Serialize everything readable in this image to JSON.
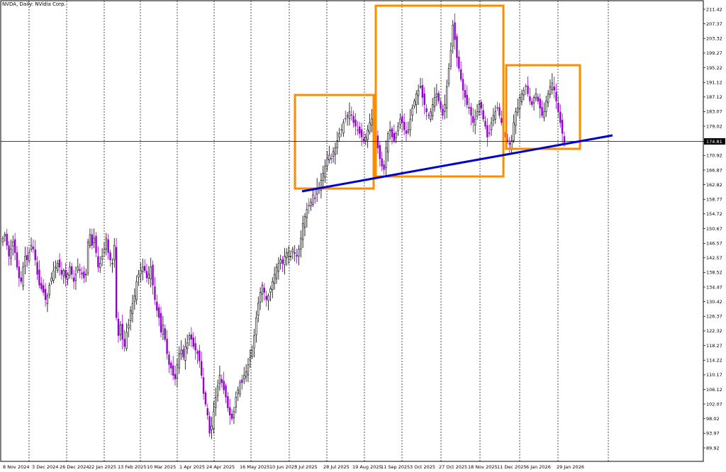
{
  "chart_data": {
    "type": "candlestick",
    "title": "NVDA, Daily:  NVidia Corp.",
    "symbol": "NVDA",
    "timeframe": "Daily",
    "instrument": "NVidia Corp.",
    "y_ticks": [
      "211.42",
      "207.37",
      "203.32",
      "199.27",
      "195.22",
      "191.12",
      "187.12",
      "183.07",
      "179.02",
      "174.81",
      "170.92",
      "166.87",
      "162.82",
      "158.77",
      "154.72",
      "150.67",
      "146.57",
      "142.57",
      "138.52",
      "134.47",
      "130.42",
      "126.37",
      "122.32",
      "118.27",
      "114.22",
      "110.17",
      "106.12",
      "102.07",
      "98.02",
      "93.97",
      "89.92"
    ],
    "x_ticks": [
      "8 Nov 2024",
      "3 Dec 2024",
      "26 Dec 2024",
      "22 Jan 2025",
      "13 Feb 2025",
      "10 Mar 2025",
      "1 Apr 2025",
      "24 Apr 2025",
      "16 May 2025",
      "10 Jun 2025",
      "3 Jul 2025",
      "28 Jul 2025",
      "19 Aug 2025",
      "11 Sep 2025",
      "3 Oct 2025",
      "27 Oct 2025",
      "18 Nov 2025",
      "11 Dec 2025",
      "6 Jan 2026",
      "29 Jan 2026"
    ],
    "ylim": [
      88,
      216
    ],
    "current_price": "174.81",
    "grid": "vertical dotted",
    "colors": {
      "bull_candle": "#000000",
      "bear_candle": "#9400d3",
      "grid": "#000000",
      "price_line": "#000000",
      "support_line": "#0000cd",
      "boxes": "#ff8c00"
    },
    "closes_approx": [
      148,
      149,
      146,
      143,
      145,
      147,
      144,
      140,
      137,
      136,
      140,
      143,
      142,
      144,
      146,
      145,
      142,
      138,
      135,
      134,
      133,
      131,
      132,
      135,
      137,
      139,
      140,
      141,
      140,
      138,
      139,
      137,
      138,
      140,
      138,
      136,
      138,
      140,
      139,
      138,
      137,
      138,
      147,
      149,
      146,
      148,
      144,
      140,
      141,
      143,
      145,
      148,
      144,
      142,
      141,
      146,
      126,
      121,
      124,
      120,
      118,
      122,
      124,
      128,
      130,
      132,
      136,
      138,
      139,
      140,
      139,
      137,
      138,
      140,
      135,
      131,
      128,
      126,
      122,
      124,
      120,
      116,
      113,
      112,
      110,
      109,
      113,
      116,
      117,
      115,
      118,
      119,
      121,
      120,
      118,
      117,
      116,
      114,
      110,
      105,
      102,
      99,
      94,
      96,
      100,
      104,
      107,
      110,
      108,
      106,
      104,
      101,
      99,
      98,
      100,
      104,
      106,
      108,
      108,
      110,
      111,
      113,
      115,
      117,
      121,
      126,
      130,
      133,
      135,
      133,
      131,
      132,
      134,
      136,
      138,
      140,
      141,
      142,
      141,
      143,
      144,
      144,
      143,
      145,
      144,
      143,
      145,
      148,
      152,
      154,
      156,
      157,
      158,
      160,
      159,
      162,
      162,
      164,
      166,
      168,
      170,
      171,
      170,
      172,
      173,
      175,
      177,
      178,
      180,
      181,
      182,
      183,
      182,
      180,
      179,
      178,
      177,
      176,
      175,
      176,
      178,
      180,
      181,
      180,
      177,
      173,
      170,
      168,
      167,
      173,
      177,
      178,
      176,
      175,
      177,
      179,
      181,
      180,
      178,
      177,
      178,
      181,
      184,
      186,
      188,
      189,
      190,
      187,
      185,
      183,
      182,
      183,
      185,
      187,
      188,
      186,
      184,
      182,
      185,
      190,
      195,
      200,
      207,
      203,
      198,
      195,
      192,
      189,
      187,
      185,
      184,
      182,
      180,
      181,
      183,
      185,
      184,
      181,
      179,
      176,
      177,
      180,
      182,
      183,
      184,
      182,
      180,
      178,
      176,
      175,
      174,
      175,
      180,
      183,
      184,
      187,
      188,
      189,
      190,
      188,
      186,
      185,
      187,
      188,
      186,
      184,
      182,
      183,
      186,
      188,
      190,
      191,
      189,
      186,
      183,
      180,
      177,
      174
    ],
    "annotations": [
      {
        "type": "rectangle",
        "color": "#ff8c00",
        "label": "box-1"
      },
      {
        "type": "rectangle",
        "color": "#ff8c00",
        "label": "box-2"
      },
      {
        "type": "rectangle",
        "color": "#ff8c00",
        "label": "box-3"
      },
      {
        "type": "trendline",
        "color": "#0000cd",
        "label": "support-trendline"
      }
    ]
  }
}
